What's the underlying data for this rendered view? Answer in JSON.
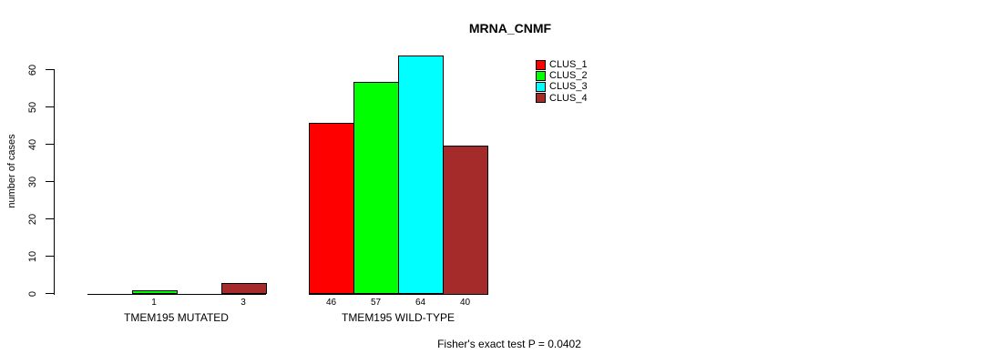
{
  "chart_data": {
    "type": "bar",
    "title": "MRNA_CNMF",
    "ylabel": "number of cases",
    "yticks": [
      0,
      10,
      20,
      30,
      40,
      50,
      60
    ],
    "ylim": [
      0,
      65
    ],
    "grid": false,
    "legend_position": "top-right",
    "series": [
      "CLUS_1",
      "CLUS_2",
      "CLUS_3",
      "CLUS_4"
    ],
    "colors": [
      "#FF0000",
      "#00FF00",
      "#00FFFF",
      "#A52A2A"
    ],
    "groups": [
      {
        "label": "TMEM195 MUTATED",
        "values": [
          0,
          1,
          0,
          3
        ]
      },
      {
        "label": "TMEM195 WILD-TYPE",
        "values": [
          46,
          57,
          64,
          40
        ]
      }
    ],
    "bar_value_labels": [
      [
        "",
        "1",
        "",
        "3"
      ],
      [
        "46",
        "57",
        "64",
        "40"
      ]
    ],
    "annotation": "Fisher's exact test P = 0.0402"
  }
}
